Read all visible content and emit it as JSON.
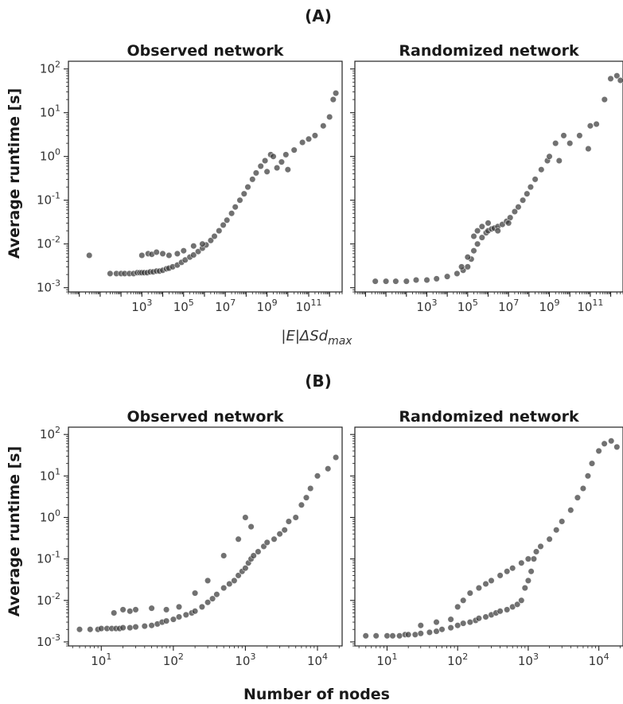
{
  "figure": {
    "panel_a_label": "(A)",
    "panel_b_label": "(B)",
    "y_axis_label": "Average runtime [s]"
  },
  "colors": {
    "points": "#3a3a3a",
    "axes": "#222222"
  },
  "chart_data": [
    {
      "id": "A-observed",
      "type": "scatter",
      "title": "Observed network",
      "xlabel_parts": [
        "|E|ΔSd",
        "max"
      ],
      "ylabel": "Average runtime [s]",
      "xscale": "log",
      "yscale": "log",
      "xlim": [
        0.3,
        4000000000000.0
      ],
      "ylim": [
        0.0008,
        150
      ],
      "xtick_exponents": [
        3,
        5,
        7,
        9,
        11
      ],
      "ytick_exponents": [
        -3,
        -2,
        -1,
        0,
        1,
        2
      ],
      "grid": false,
      "x": [
        3,
        30,
        60,
        100,
        150,
        250,
        400,
        600,
        800,
        1000,
        1300,
        1800,
        2500,
        3500,
        5000,
        7000,
        10000,
        15000,
        20000,
        30000,
        50000,
        80000,
        120000,
        200000,
        300000,
        500000,
        800000,
        1200000,
        2000000,
        3000000,
        5000000,
        8000000,
        12000000,
        20000000,
        30000000,
        50000000,
        80000000,
        120000000,
        200000000,
        300000000,
        500000000,
        800000000,
        1000000000,
        1500000000,
        2000000000,
        3000000000,
        5000000000,
        8000000000,
        10000000000,
        20000000000,
        50000000000,
        100000000000,
        200000000000,
        500000000000,
        1000000000000,
        1500000000000,
        2000000000000,
        1000,
        2000,
        3000,
        5000,
        10000,
        20000,
        50000,
        100000,
        300000,
        800000
      ],
      "y": [
        0.0055,
        0.0021,
        0.0021,
        0.0021,
        0.0021,
        0.0021,
        0.0021,
        0.0022,
        0.0022,
        0.0022,
        0.0022,
        0.0022,
        0.0023,
        0.0023,
        0.0024,
        0.0024,
        0.0025,
        0.0027,
        0.0028,
        0.003,
        0.0033,
        0.0038,
        0.0043,
        0.005,
        0.0056,
        0.0067,
        0.008,
        0.0095,
        0.012,
        0.015,
        0.02,
        0.027,
        0.035,
        0.05,
        0.07,
        0.1,
        0.14,
        0.2,
        0.3,
        0.42,
        0.6,
        0.8,
        0.45,
        1.1,
        1.0,
        0.55,
        0.75,
        1.1,
        0.5,
        1.4,
        2.1,
        2.5,
        3,
        5,
        8,
        20,
        28,
        0.0055,
        0.006,
        0.0058,
        0.0065,
        0.006,
        0.0055,
        0.006,
        0.007,
        0.009,
        0.01
      ]
    },
    {
      "id": "A-randomized",
      "type": "scatter",
      "title": "Randomized network",
      "xlabel_parts": [
        "|E|ΔSd",
        "max"
      ],
      "xscale": "log",
      "yscale": "log",
      "xlim": [
        0.3,
        4000000000000.0
      ],
      "ylim": [
        0.0008,
        150
      ],
      "xtick_exponents": [
        3,
        5,
        7,
        9,
        11
      ],
      "ytick_exponents": [
        -3,
        -2,
        -1,
        0,
        1,
        2
      ],
      "grid": false,
      "x": [
        3,
        10,
        30,
        100,
        300,
        1000,
        3000,
        10000,
        30000,
        60000,
        100000,
        150000,
        200000,
        300000,
        500000,
        800000,
        1000000,
        1500000,
        2000000,
        3000000,
        5000000,
        8000000,
        12000000,
        20000000,
        30000000,
        50000000,
        80000000,
        120000000,
        200000000,
        400000000,
        800000000,
        1000000000,
        2000000000,
        3000000000,
        5000000000,
        10000000000,
        30000000000,
        80000000000,
        100000000000,
        200000000000,
        500000000000,
        1000000000000,
        2000000000000,
        3000000000000,
        200000,
        300000,
        500000,
        1000000,
        3000000,
        10000000,
        100000,
        50000
      ],
      "y": [
        0.0014,
        0.0014,
        0.0014,
        0.0014,
        0.0015,
        0.0015,
        0.0016,
        0.0018,
        0.0021,
        0.0025,
        0.003,
        0.0045,
        0.007,
        0.01,
        0.014,
        0.018,
        0.02,
        0.022,
        0.023,
        0.025,
        0.028,
        0.033,
        0.04,
        0.055,
        0.07,
        0.1,
        0.14,
        0.2,
        0.3,
        0.5,
        0.8,
        1.0,
        2.0,
        0.8,
        3.0,
        2.0,
        3.0,
        1.5,
        5.0,
        5.5,
        20,
        60,
        70,
        55,
        0.015,
        0.02,
        0.025,
        0.03,
        0.02,
        0.03,
        0.005,
        0.003
      ]
    },
    {
      "id": "B-observed",
      "type": "scatter",
      "title": "Observed network",
      "xlabel": "Number of nodes",
      "xscale": "log",
      "yscale": "log",
      "xlim": [
        3.5,
        22000
      ],
      "ylim": [
        0.0008,
        150
      ],
      "xtick_exponents": [
        1,
        2,
        3,
        4
      ],
      "ytick_exponents": [
        -3,
        -2,
        -1,
        0,
        1,
        2
      ],
      "grid": false,
      "x": [
        5,
        7,
        9,
        10,
        12,
        14,
        16,
        18,
        20,
        25,
        30,
        40,
        50,
        60,
        70,
        80,
        100,
        120,
        150,
        180,
        200,
        250,
        300,
        350,
        400,
        500,
        600,
        700,
        800,
        900,
        1000,
        1100,
        1200,
        1300,
        1500,
        1800,
        2000,
        2500,
        3000,
        3500,
        4000,
        5000,
        6000,
        7000,
        8000,
        10000,
        14000,
        18000,
        15,
        20,
        25,
        30,
        50,
        80,
        120,
        200,
        300,
        500,
        800,
        1000,
        1200
      ],
      "y": [
        0.002,
        0.002,
        0.002,
        0.0021,
        0.0021,
        0.0021,
        0.0021,
        0.0021,
        0.0022,
        0.0022,
        0.0023,
        0.0024,
        0.0025,
        0.0027,
        0.003,
        0.0032,
        0.0035,
        0.004,
        0.0045,
        0.005,
        0.0055,
        0.007,
        0.009,
        0.011,
        0.014,
        0.02,
        0.025,
        0.03,
        0.04,
        0.05,
        0.06,
        0.08,
        0.1,
        0.12,
        0.15,
        0.2,
        0.25,
        0.3,
        0.4,
        0.5,
        0.8,
        1.0,
        2.0,
        3.0,
        5.0,
        10,
        15,
        28,
        0.005,
        0.006,
        0.0055,
        0.006,
        0.0065,
        0.006,
        0.007,
        0.015,
        0.03,
        0.12,
        0.3,
        1.0,
        0.6
      ]
    },
    {
      "id": "B-randomized",
      "type": "scatter",
      "title": "Randomized network",
      "xlabel": "Number of nodes",
      "xscale": "log",
      "yscale": "log",
      "xlim": [
        3.5,
        22000
      ],
      "ylim": [
        0.0008,
        150
      ],
      "xtick_exponents": [
        1,
        2,
        3,
        4
      ],
      "ytick_exponents": [
        -3,
        -2,
        -1,
        0,
        1,
        2
      ],
      "grid": false,
      "x": [
        5,
        7,
        10,
        12,
        15,
        18,
        20,
        25,
        30,
        40,
        50,
        60,
        80,
        100,
        120,
        150,
        180,
        200,
        250,
        300,
        350,
        400,
        500,
        600,
        700,
        800,
        900,
        1000,
        1100,
        1200,
        1300,
        1500,
        2000,
        2500,
        3000,
        4000,
        5000,
        6000,
        7000,
        8000,
        10000,
        12000,
        15000,
        18000,
        100,
        120,
        150,
        200,
        250,
        300,
        400,
        500,
        600,
        800,
        1000,
        30,
        50,
        80
      ],
      "y": [
        0.0014,
        0.0014,
        0.0014,
        0.0014,
        0.0014,
        0.0015,
        0.0015,
        0.0015,
        0.0016,
        0.0017,
        0.0018,
        0.002,
        0.0022,
        0.0025,
        0.0028,
        0.003,
        0.0033,
        0.0037,
        0.004,
        0.0045,
        0.005,
        0.0055,
        0.006,
        0.007,
        0.008,
        0.01,
        0.02,
        0.03,
        0.05,
        0.1,
        0.15,
        0.2,
        0.3,
        0.5,
        0.8,
        1.5,
        3.0,
        5.0,
        10,
        20,
        40,
        60,
        70,
        50,
        0.007,
        0.01,
        0.015,
        0.02,
        0.025,
        0.03,
        0.04,
        0.05,
        0.06,
        0.08,
        0.1,
        0.0025,
        0.003,
        0.0035
      ]
    }
  ]
}
